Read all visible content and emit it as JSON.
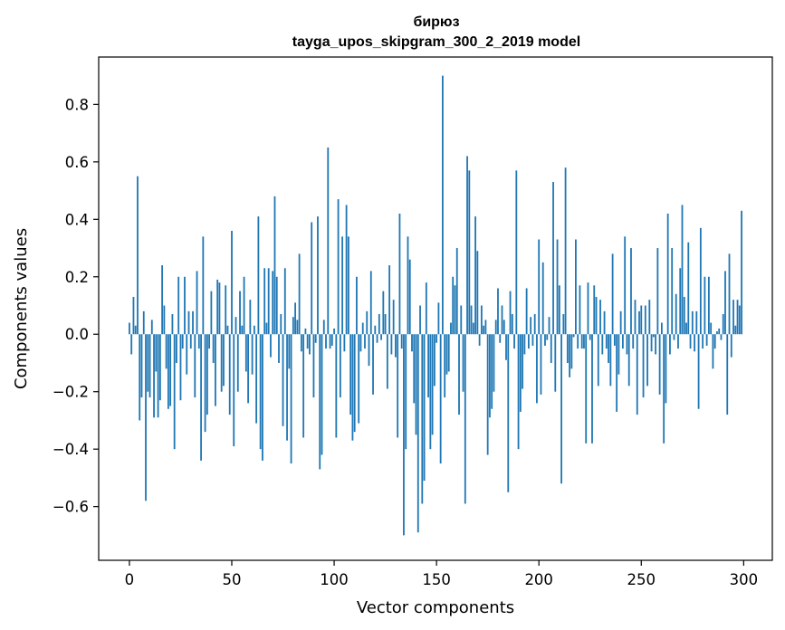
{
  "chart_data": {
    "type": "bar",
    "title_line1": "бирюз",
    "title_line2": "tayga_upos_skipgram_300_2_2019 model",
    "xlabel": "Vector components",
    "ylabel": "Components values",
    "xlim": [
      -15,
      314
    ],
    "ylim": [
      -0.787,
      0.965
    ],
    "xticks": [
      0,
      50,
      100,
      150,
      200,
      250,
      300
    ],
    "yticks": [
      -0.6,
      -0.4,
      -0.2,
      0.0,
      0.2,
      0.4,
      0.6,
      0.8
    ],
    "ytick_labels": [
      "−0.6",
      "−0.4",
      "−0.2",
      "0.0",
      "0.2",
      "0.4",
      "0.6",
      "0.8"
    ],
    "grid": false,
    "bar_color": "#1f77b4",
    "values": [
      0.04,
      -0.07,
      0.13,
      0.03,
      0.55,
      -0.3,
      -0.22,
      0.08,
      -0.58,
      -0.2,
      -0.22,
      0.05,
      -0.29,
      -0.13,
      -0.29,
      -0.23,
      0.24,
      0.1,
      -0.12,
      -0.26,
      -0.25,
      0.07,
      -0.4,
      -0.1,
      0.2,
      -0.23,
      -0.05,
      0.2,
      -0.14,
      0.08,
      -0.05,
      0.08,
      -0.22,
      0.22,
      -0.05,
      -0.44,
      0.34,
      -0.34,
      -0.28,
      -0.05,
      0.15,
      -0.1,
      -0.25,
      0.19,
      0.18,
      -0.2,
      -0.18,
      0.17,
      0.03,
      -0.28,
      0.36,
      -0.39,
      0.06,
      -0.2,
      0.15,
      0.03,
      0.2,
      -0.13,
      -0.24,
      0.12,
      -0.14,
      0.03,
      -0.31,
      0.41,
      -0.4,
      -0.44,
      0.23,
      0.04,
      0.23,
      -0.08,
      0.22,
      0.48,
      0.2,
      -0.1,
      0.07,
      -0.32,
      0.23,
      -0.37,
      -0.12,
      -0.45,
      0.06,
      0.11,
      0.05,
      0.28,
      -0.06,
      -0.36,
      0.02,
      -0.05,
      -0.07,
      0.39,
      -0.22,
      -0.03,
      0.41,
      -0.47,
      -0.42,
      0.05,
      -0.05,
      0.65,
      -0.05,
      -0.04,
      0.02,
      -0.36,
      0.47,
      -0.22,
      0.34,
      -0.06,
      0.45,
      0.34,
      -0.28,
      -0.37,
      -0.34,
      0.2,
      -0.31,
      -0.06,
      0.04,
      -0.05,
      0.08,
      -0.11,
      0.22,
      -0.21,
      0.03,
      -0.03,
      0.07,
      -0.02,
      0.15,
      0.07,
      -0.19,
      0.24,
      -0.07,
      0.12,
      -0.08,
      -0.36,
      0.42,
      -0.05,
      -0.7,
      -0.4,
      0.34,
      0.26,
      -0.06,
      -0.24,
      -0.35,
      -0.69,
      0.1,
      -0.59,
      -0.51,
      0.18,
      -0.22,
      -0.4,
      -0.35,
      -0.18,
      -0.03,
      0.11,
      -0.45,
      0.9,
      -0.22,
      -0.14,
      -0.13,
      0.04,
      0.2,
      0.17,
      0.3,
      -0.28,
      0.1,
      -0.2,
      -0.59,
      0.62,
      0.57,
      0.1,
      0.04,
      0.41,
      0.29,
      -0.04,
      0.1,
      0.03,
      0.05,
      -0.42,
      -0.29,
      -0.26,
      -0.2,
      0.05,
      0.16,
      -0.03,
      0.1,
      0.05,
      -0.09,
      -0.55,
      0.15,
      0.07,
      -0.05,
      0.57,
      -0.4,
      -0.27,
      -0.19,
      -0.07,
      0.16,
      -0.05,
      0.06,
      -0.04,
      0.07,
      -0.24,
      0.33,
      -0.21,
      0.25,
      -0.04,
      -0.02,
      0.06,
      -0.1,
      0.53,
      -0.2,
      0.33,
      0.17,
      -0.52,
      0.07,
      0.58,
      -0.1,
      -0.15,
      -0.12,
      -0.01,
      0.33,
      -0.05,
      0.17,
      -0.05,
      -0.05,
      -0.38,
      0.18,
      -0.02,
      -0.38,
      0.17,
      0.13,
      -0.18,
      0.12,
      -0.07,
      0.08,
      -0.05,
      -0.1,
      -0.18,
      0.28,
      -0.04,
      -0.27,
      -0.14,
      0.08,
      -0.05,
      0.34,
      -0.07,
      -0.18,
      0.3,
      -0.05,
      0.12,
      -0.28,
      0.08,
      0.1,
      -0.22,
      0.1,
      -0.18,
      0.12,
      -0.06,
      -0.01,
      -0.07,
      0.3,
      -0.21,
      0.04,
      -0.38,
      -0.24,
      0.42,
      -0.07,
      0.3,
      -0.02,
      0.14,
      -0.05,
      0.23,
      0.45,
      0.13,
      0.04,
      0.32,
      -0.05,
      0.08,
      -0.06,
      0.08,
      -0.26,
      0.37,
      -0.05,
      0.2,
      -0.04,
      0.2,
      0.04,
      -0.12,
      -0.05,
      0.01,
      0.02,
      -0.02,
      0.07,
      0.22,
      -0.28,
      0.28,
      -0.08,
      0.12,
      0.03,
      0.12,
      0.1,
      0.43
    ]
  }
}
